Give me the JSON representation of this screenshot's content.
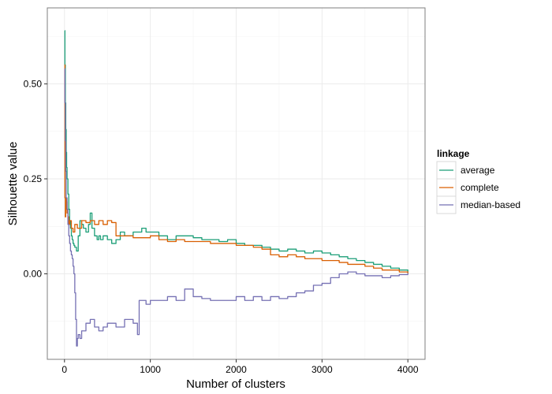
{
  "chart_data": {
    "type": "line",
    "xlabel": "Number of clusters",
    "ylabel": "Silhouette value",
    "xlim": [
      -200,
      4200
    ],
    "ylim": [
      -0.225,
      0.7
    ],
    "x_ticks": [
      0,
      1000,
      2000,
      3000,
      4000
    ],
    "x_tick_labels": [
      "0",
      "1000",
      "2000",
      "3000",
      "4000"
    ],
    "y_ticks": [
      0,
      0.25,
      0.5
    ],
    "y_tick_labels": [
      "0.00",
      "0.25",
      "0.50"
    ],
    "grid": true,
    "legend": {
      "title": "linkage",
      "position": "right"
    },
    "series": [
      {
        "name": "average",
        "color": "#1b9e77",
        "x": [
          2,
          5,
          10,
          15,
          20,
          25,
          30,
          40,
          50,
          60,
          70,
          80,
          90,
          100,
          110,
          120,
          140,
          160,
          180,
          200,
          220,
          250,
          280,
          300,
          320,
          350,
          380,
          400,
          420,
          450,
          500,
          550,
          600,
          650,
          700,
          750,
          800,
          850,
          900,
          950,
          1000,
          1100,
          1200,
          1300,
          1400,
          1500,
          1600,
          1700,
          1800,
          1900,
          2000,
          2100,
          2200,
          2300,
          2400,
          2500,
          2600,
          2700,
          2800,
          2900,
          3000,
          3100,
          3200,
          3300,
          3400,
          3500,
          3600,
          3700,
          3800,
          3900,
          4000
        ],
        "values": [
          0.64,
          0.55,
          0.45,
          0.38,
          0.32,
          0.28,
          0.25,
          0.21,
          0.17,
          0.14,
          0.12,
          0.1,
          0.09,
          0.08,
          0.075,
          0.07,
          0.06,
          0.1,
          0.14,
          0.13,
          0.12,
          0.11,
          0.13,
          0.16,
          0.12,
          0.1,
          0.09,
          0.1,
          0.09,
          0.1,
          0.09,
          0.08,
          0.09,
          0.11,
          0.1,
          0.1,
          0.11,
          0.11,
          0.12,
          0.11,
          0.11,
          0.1,
          0.09,
          0.1,
          0.1,
          0.095,
          0.09,
          0.09,
          0.085,
          0.09,
          0.08,
          0.075,
          0.075,
          0.07,
          0.065,
          0.06,
          0.065,
          0.06,
          0.055,
          0.06,
          0.055,
          0.05,
          0.045,
          0.04,
          0.035,
          0.03,
          0.025,
          0.02,
          0.015,
          0.01,
          0.002
        ]
      },
      {
        "name": "complete",
        "color": "#d95f02",
        "x": [
          2,
          5,
          10,
          15,
          20,
          25,
          30,
          40,
          50,
          60,
          80,
          100,
          120,
          150,
          200,
          250,
          300,
          350,
          400,
          450,
          500,
          550,
          600,
          650,
          700,
          800,
          900,
          1000,
          1100,
          1200,
          1300,
          1400,
          1500,
          1600,
          1700,
          1800,
          1900,
          2000,
          2100,
          2200,
          2300,
          2400,
          2500,
          2600,
          2700,
          2800,
          2900,
          3000,
          3100,
          3200,
          3300,
          3400,
          3500,
          3600,
          3700,
          3800,
          3900,
          4000
        ],
        "values": [
          0.55,
          0.2,
          0.15,
          0.2,
          0.17,
          0.19,
          0.16,
          0.15,
          0.13,
          0.14,
          0.12,
          0.11,
          0.13,
          0.12,
          0.14,
          0.135,
          0.14,
          0.13,
          0.14,
          0.13,
          0.14,
          0.135,
          0.1,
          0.1,
          0.1,
          0.095,
          0.095,
          0.1,
          0.09,
          0.085,
          0.09,
          0.085,
          0.085,
          0.085,
          0.08,
          0.08,
          0.08,
          0.075,
          0.075,
          0.07,
          0.065,
          0.05,
          0.045,
          0.05,
          0.045,
          0.04,
          0.04,
          0.035,
          0.035,
          0.03,
          0.025,
          0.025,
          0.02,
          0.015,
          0.01,
          0.01,
          0.005,
          0.002
        ]
      },
      {
        "name": "median-based",
        "color": "#7570b3",
        "x": [
          2,
          5,
          10,
          15,
          20,
          30,
          40,
          50,
          60,
          70,
          80,
          90,
          100,
          110,
          120,
          130,
          140,
          150,
          160,
          180,
          200,
          250,
          300,
          350,
          400,
          450,
          500,
          600,
          700,
          800,
          850,
          870,
          900,
          950,
          1000,
          1100,
          1200,
          1300,
          1400,
          1500,
          1600,
          1700,
          1800,
          1900,
          2000,
          2100,
          2200,
          2300,
          2400,
          2500,
          2600,
          2700,
          2800,
          2900,
          3000,
          3100,
          3200,
          3300,
          3400,
          3500,
          3600,
          3700,
          3800,
          3900,
          4000
        ],
        "values": [
          0.54,
          0.45,
          0.35,
          0.27,
          0.2,
          0.17,
          0.13,
          0.1,
          0.08,
          0.06,
          0.05,
          0.04,
          0.02,
          0.0,
          -0.05,
          -0.12,
          -0.19,
          -0.17,
          -0.16,
          -0.17,
          -0.15,
          -0.13,
          -0.12,
          -0.14,
          -0.15,
          -0.14,
          -0.13,
          -0.14,
          -0.12,
          -0.13,
          -0.16,
          -0.07,
          -0.07,
          -0.08,
          -0.07,
          -0.07,
          -0.06,
          -0.07,
          -0.04,
          -0.06,
          -0.065,
          -0.07,
          -0.07,
          -0.07,
          -0.06,
          -0.07,
          -0.06,
          -0.07,
          -0.06,
          -0.065,
          -0.06,
          -0.05,
          -0.045,
          -0.03,
          -0.025,
          -0.01,
          0.0,
          0.005,
          0.0,
          -0.005,
          -0.005,
          -0.01,
          -0.005,
          -0.002,
          0.002
        ]
      }
    ]
  }
}
